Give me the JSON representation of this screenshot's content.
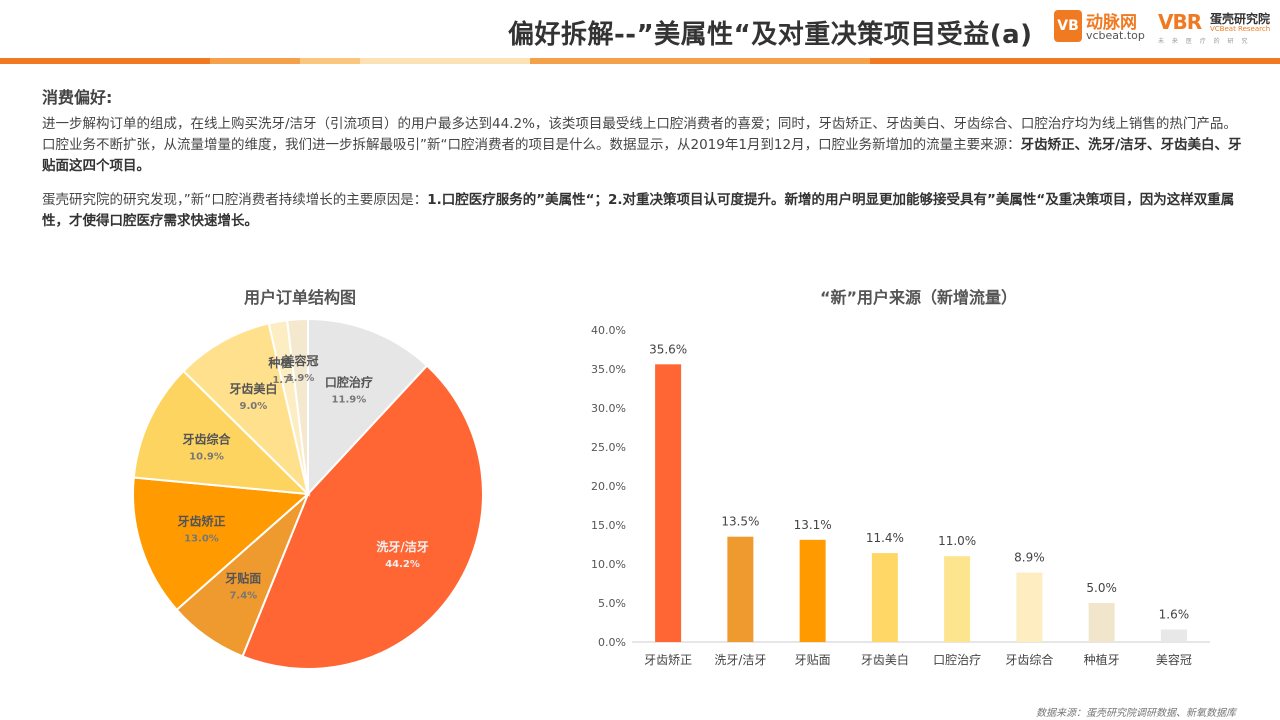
{
  "header": {
    "title": "偏好拆解--”美属性“及对重决策项目受益(a)",
    "logo1": {
      "mark": "VB",
      "name": "动脉网",
      "url": "vcbeat.top"
    },
    "logo2": {
      "mark": "VBR",
      "name": "蛋壳研究院",
      "en": "VCBeat Research",
      "sub": "未 来 医 疗 的 研 究"
    }
  },
  "colors": {
    "accent": "#f07a21",
    "stripe": [
      "#f07a21",
      "#f5a04b",
      "#fbc77e",
      "#fde2b5",
      "#f5a04b",
      "#f07a21"
    ]
  },
  "section": {
    "title": "消费偏好:",
    "p1_text": "进一步解构订单的组成，在线上购买洗牙/洁牙（引流项目）的用户最多达到44.2%，该类项目最受线上口腔消费者的喜爱；同时，牙齿矫正、牙齿美白、牙齿综合、口腔治疗均为线上销售的热门产品。口腔业务不断扩张，从流量增量的维度，我们进一步拆解最吸引”新“口腔消费者的项目是什么。数据显示，从2019年1月到12月，口腔业务新增加的流量主要来源：",
    "p1_bold": "牙齿矫正、洗牙/洁牙、牙齿美白、牙贴面这四个项目。",
    "p2_text": "蛋壳研究院的研究发现，”新“口腔消费者持续增长的主要原因是：",
    "p2_bold": "1.口腔医疗服务的”美属性“；2.对重决策项目认可度提升。新增的用户明显更加能够接受具有”美属性“及重决策项目，因为这样双重属性，才使得口腔医疗需求快速增长。"
  },
  "chart_data": [
    {
      "type": "pie",
      "title": "用户订单结构图",
      "slices": [
        {
          "label": "口腔治疗",
          "value": 11.9,
          "display": "11.9%",
          "color": "#e6e6e6"
        },
        {
          "label": "洗牙/洁牙",
          "value": 44.2,
          "display": "44.2%",
          "color": "#ff6633"
        },
        {
          "label": "牙贴面",
          "value": 7.4,
          "display": "7.4%",
          "color": "#ee9a2e"
        },
        {
          "label": "牙齿矫正",
          "value": 13.0,
          "display": "13.0%",
          "color": "#ff9a00"
        },
        {
          "label": "牙齿综合",
          "value": 10.9,
          "display": "10.9%",
          "color": "#fed461"
        },
        {
          "label": "牙齿美白",
          "value": 9.0,
          "display": "9.0%",
          "color": "#ffe08c"
        },
        {
          "label": "种植牙",
          "value": 1.7,
          "display": "1.7%",
          "color": "#fdedc2"
        },
        {
          "label": "美容冠",
          "value": 1.9,
          "display": "1.9%",
          "color": "#f4e8cf"
        }
      ]
    },
    {
      "type": "bar",
      "title": "“新”用户来源（新增流量）",
      "categories": [
        "牙齿矫正",
        "洗牙/洁牙",
        "牙贴面",
        "牙齿美白",
        "口腔治疗",
        "牙齿综合",
        "种植牙",
        "美容冠"
      ],
      "values": [
        35.6,
        13.5,
        13.1,
        11.4,
        11.0,
        8.9,
        5.0,
        1.6
      ],
      "value_labels": [
        "35.6%",
        "13.5%",
        "13.1%",
        "11.4%",
        "11.0%",
        "8.9%",
        "5.0%",
        "1.6%"
      ],
      "colors": [
        "#ff6633",
        "#ee9a2e",
        "#ff9a00",
        "#ffd766",
        "#fde48f",
        "#fdedc0",
        "#f1e6cb",
        "#e8e8e8"
      ],
      "ylim": [
        0,
        40
      ],
      "yticks": [
        "0.0%",
        "5.0%",
        "10.0%",
        "15.0%",
        "20.0%",
        "25.0%",
        "30.0%",
        "35.0%",
        "40.0%"
      ],
      "grid": false
    }
  ],
  "footer": {
    "source": "数据来源：蛋壳研究院调研数据、新氧数据库"
  }
}
